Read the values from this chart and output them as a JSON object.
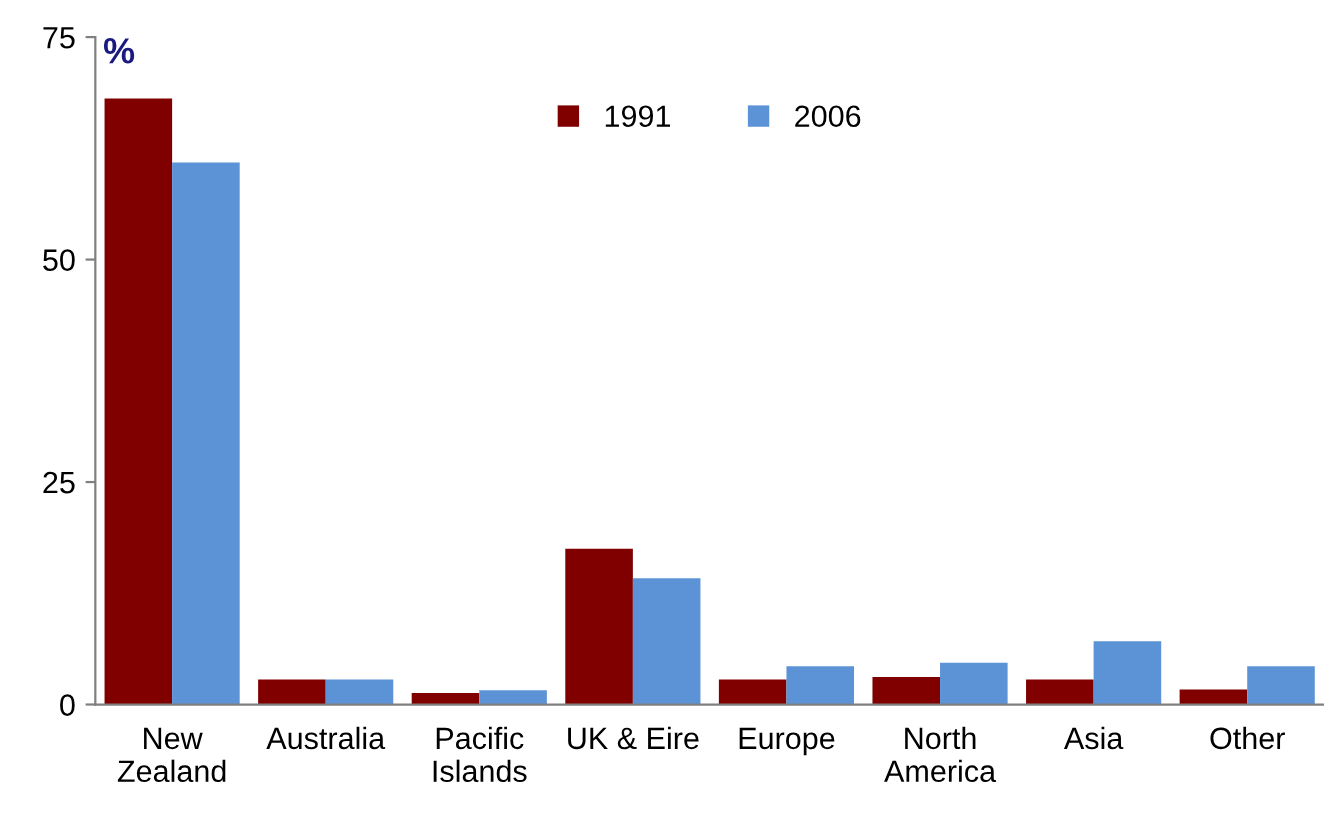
{
  "chart_data": {
    "type": "bar",
    "ylabel": "%",
    "categories": [
      "New\nZealand",
      "Australia",
      "Pacific\nIslands",
      "UK & Eire",
      "Europe",
      "North\nAmerica",
      "Asia",
      "Other"
    ],
    "series": [
      {
        "name": "1991",
        "color": "#800000",
        "values": [
          68.1,
          2.8,
          1.3,
          17.5,
          2.8,
          3.1,
          2.8,
          1.7
        ]
      },
      {
        "name": "2006",
        "color": "#5b93d6",
        "values": [
          60.9,
          2.8,
          1.6,
          14.2,
          4.3,
          4.7,
          7.1,
          4.3
        ]
      }
    ],
    "ylim": [
      0,
      75
    ],
    "yticks": [
      0,
      25,
      50,
      75
    ],
    "grid": false,
    "legend": "top"
  }
}
